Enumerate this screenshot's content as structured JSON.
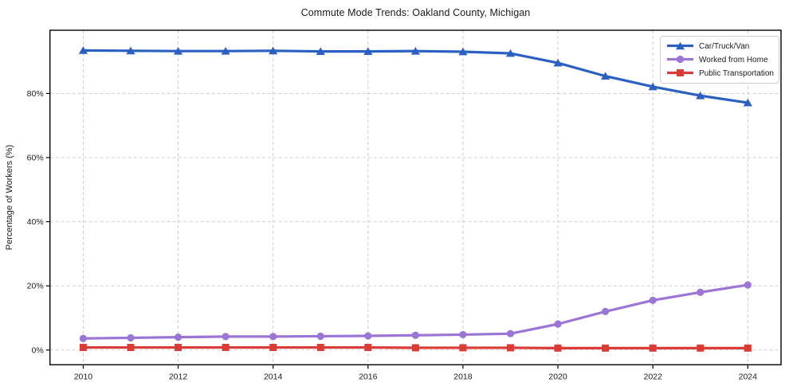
{
  "chart_data": {
    "type": "line",
    "title": "Commute Mode Trends: Oakland County, Michigan",
    "xlabel": "",
    "ylabel": "Percentage of Workers (%)",
    "x": [
      2010,
      2011,
      2012,
      2013,
      2014,
      2015,
      2016,
      2017,
      2018,
      2019,
      2020,
      2021,
      2022,
      2023,
      2024
    ],
    "series": [
      {
        "name": "Car/Truck/Van",
        "color": "#2a5fc4",
        "marker": "triangle",
        "values": [
          93.4,
          93.3,
          93.2,
          93.2,
          93.3,
          93.1,
          93.1,
          93.2,
          93.0,
          92.5,
          89.5,
          85.4,
          82.1,
          79.3,
          77.1
        ]
      },
      {
        "name": "Worked from Home",
        "color": "#9b75d6",
        "marker": "circle",
        "values": [
          3.6,
          3.8,
          4.0,
          4.2,
          4.2,
          4.3,
          4.4,
          4.6,
          4.8,
          5.1,
          8.1,
          12.0,
          15.5,
          18.0,
          20.3
        ]
      },
      {
        "name": "Public Transportation",
        "color": "#da3b35",
        "marker": "square",
        "values": [
          0.8,
          0.8,
          0.8,
          0.8,
          0.8,
          0.8,
          0.8,
          0.7,
          0.7,
          0.7,
          0.6,
          0.6,
          0.6,
          0.6,
          0.6
        ]
      }
    ],
    "xticks": [
      2010,
      2012,
      2014,
      2016,
      2018,
      2020,
      2022,
      2024
    ],
    "xtick_labels": [
      "2010",
      "2012",
      "2014",
      "2016",
      "2018",
      "2020",
      "2022",
      "2024"
    ],
    "yticks": [
      0,
      20,
      40,
      60,
      80
    ],
    "ytick_labels": [
      "0%",
      "20%",
      "40%",
      "60%",
      "80%"
    ],
    "xlim": [
      2009.3,
      2024.7
    ],
    "ylim": [
      -4.6,
      99.7
    ],
    "grid": true,
    "grid_style": "dashed",
    "legend_position": "upper right"
  },
  "colors": {
    "background": "#ffffff",
    "grid": "#cdcdcd",
    "spine": "#000000",
    "text": "#1a1a1a",
    "legend_border": "#cccccc"
  }
}
